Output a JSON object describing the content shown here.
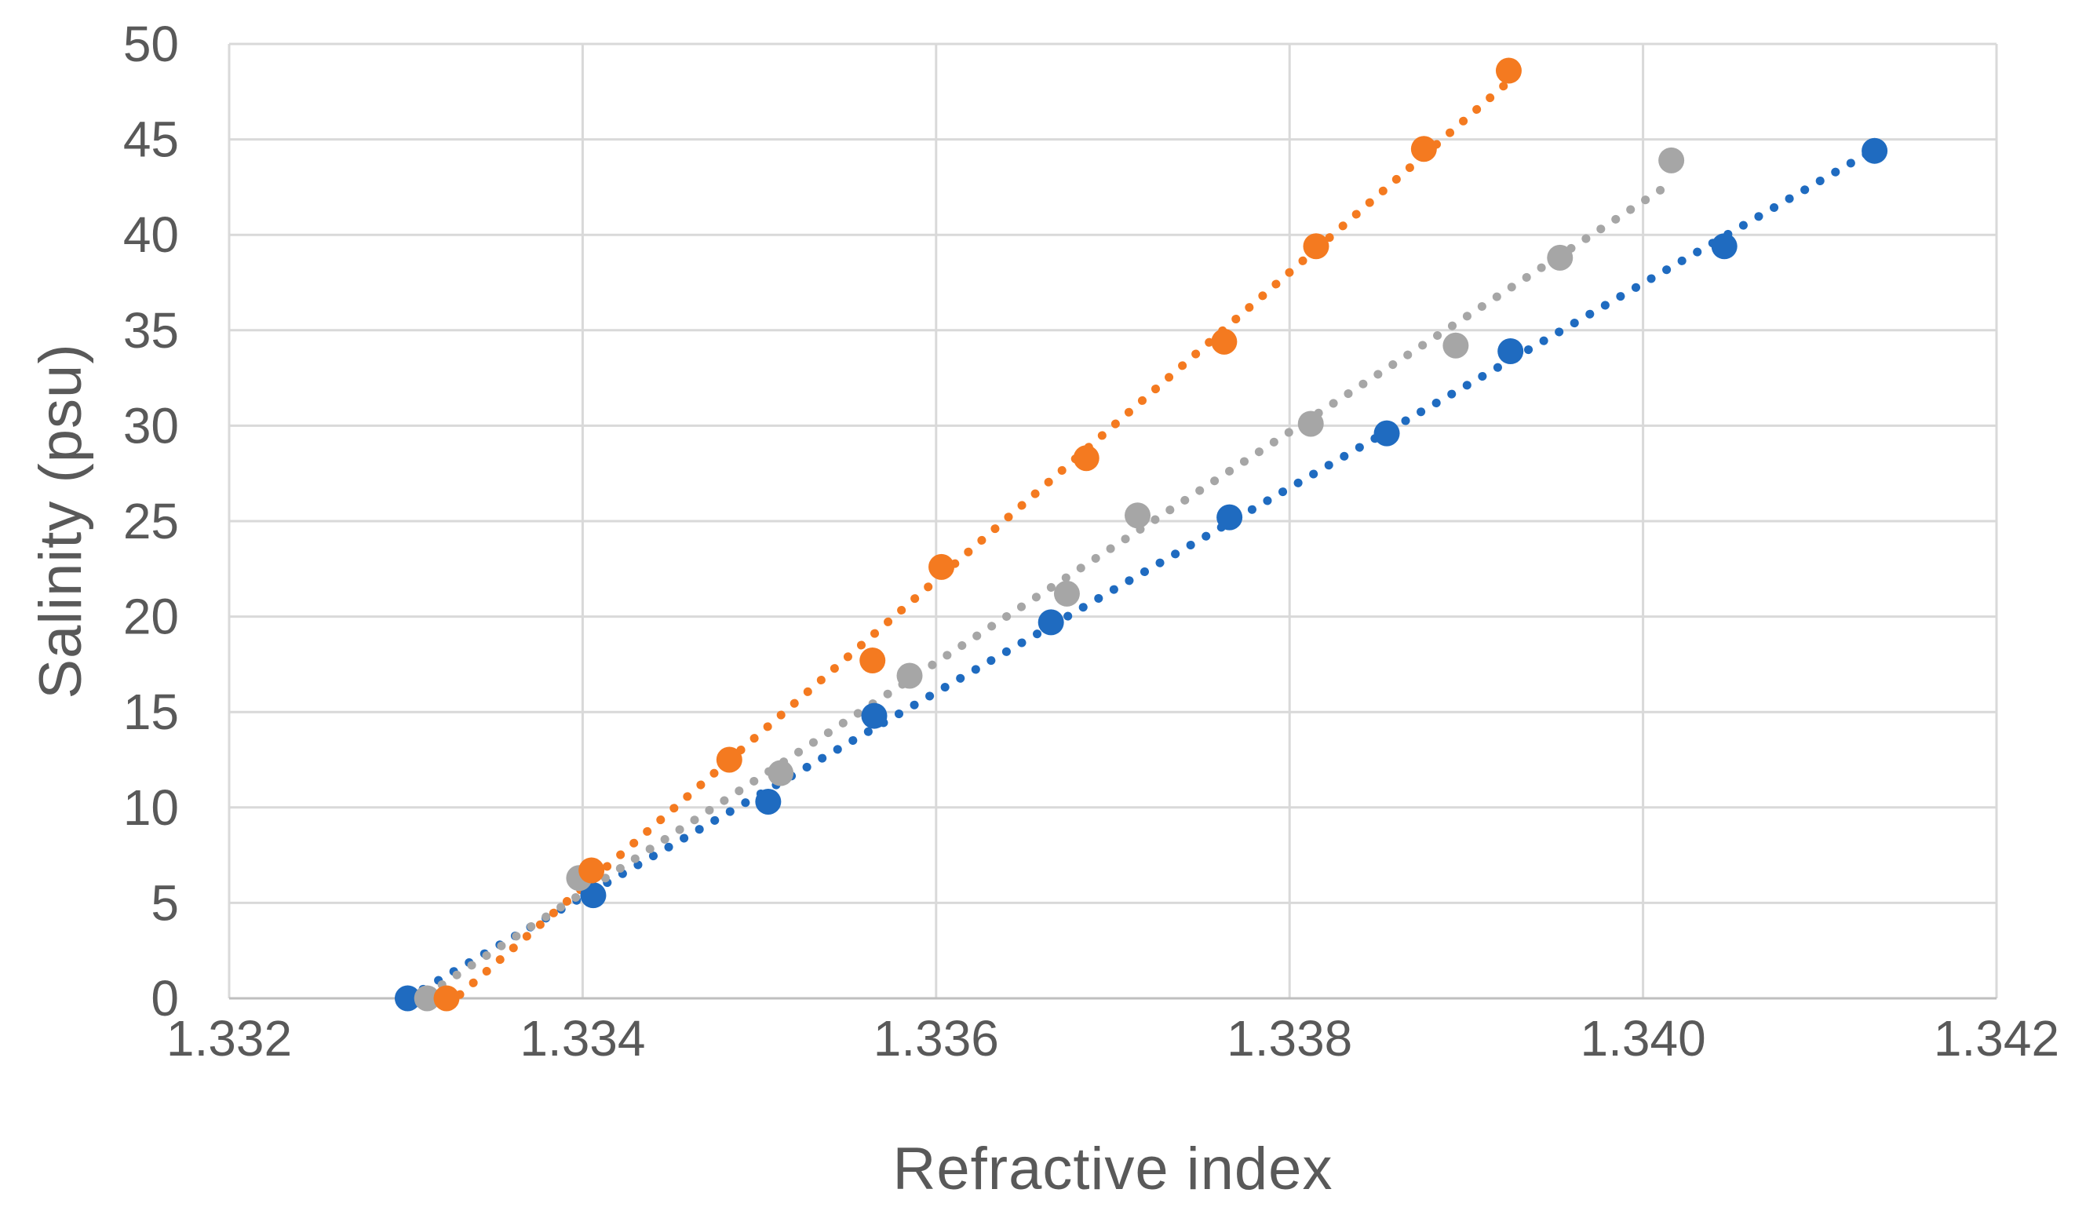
{
  "page": {
    "background_color": "#FFFFFF",
    "description": "Scatter chart of salinity versus refractive index with three dotted linear trendlines"
  },
  "chart_data": {
    "type": "scatter",
    "title": "",
    "xlabel": "Refractive index",
    "ylabel": "Salinity (psu)",
    "xlim": [
      1.332,
      1.342
    ],
    "ylim": [
      0,
      50
    ],
    "x_ticks": [
      1.332,
      1.334,
      1.336,
      1.338,
      1.34,
      1.342
    ],
    "x_tick_labels": [
      "1.332",
      "1.334",
      "1.336",
      "1.338",
      "1.340",
      "1.342"
    ],
    "y_ticks": [
      0,
      5,
      10,
      15,
      20,
      25,
      30,
      35,
      40,
      45,
      50
    ],
    "y_tick_labels": [
      "0",
      "5",
      "10",
      "15",
      "20",
      "25",
      "30",
      "35",
      "40",
      "45",
      "50"
    ],
    "grid": true,
    "legend_position": "none",
    "gridline_color": "#D9D9D9",
    "axis_line_color": "#BFBFBF",
    "axis_text_color": "#595959",
    "marker_style": "filled-circle",
    "trendline_style": "dotted-linear",
    "series": [
      {
        "name": "series-blue",
        "color": "#1F6BC0",
        "points": [
          [
            1.33301,
            0.0
          ],
          [
            1.33406,
            5.4
          ],
          [
            1.33505,
            10.3
          ],
          [
            1.33565,
            14.8
          ],
          [
            1.33665,
            19.7
          ],
          [
            1.33766,
            25.2
          ],
          [
            1.33855,
            29.6
          ],
          [
            1.33925,
            33.9
          ],
          [
            1.34046,
            39.4
          ],
          [
            1.34131,
            44.4
          ]
        ]
      },
      {
        "name": "series-gray",
        "color": "#A6A6A6",
        "points": [
          [
            1.33312,
            0.0
          ],
          [
            1.33398,
            6.3
          ],
          [
            1.33512,
            11.8
          ],
          [
            1.33585,
            16.9
          ],
          [
            1.33674,
            21.2
          ],
          [
            1.33714,
            25.3
          ],
          [
            1.33812,
            30.1
          ],
          [
            1.33894,
            34.2
          ],
          [
            1.33953,
            38.8
          ],
          [
            1.34016,
            43.9
          ]
        ]
      },
      {
        "name": "series-orange",
        "color": "#F47A20",
        "points": [
          [
            1.33323,
            0.0
          ],
          [
            1.33405,
            6.7
          ],
          [
            1.33483,
            12.5
          ],
          [
            1.33564,
            17.7
          ],
          [
            1.33603,
            22.6
          ],
          [
            1.33685,
            28.3
          ],
          [
            1.33763,
            34.4
          ],
          [
            1.33815,
            39.4
          ],
          [
            1.33876,
            44.5
          ],
          [
            1.33924,
            48.6
          ]
        ]
      }
    ]
  }
}
